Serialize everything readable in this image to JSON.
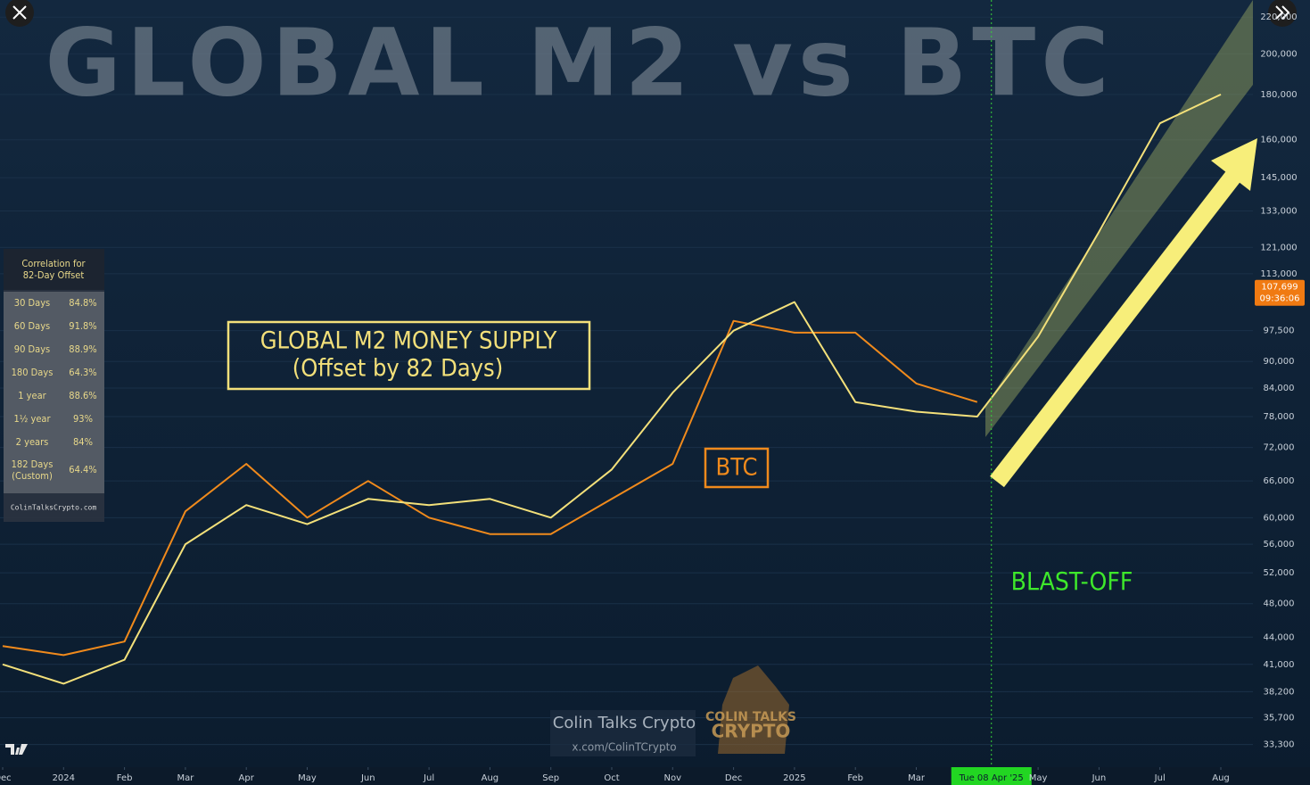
{
  "chart_data": {
    "type": "line",
    "title": "GLOBAL M2 vs BTC",
    "log_scale": true,
    "x": [
      "2023-12",
      "2024-01",
      "2024-02",
      "2024-03",
      "2024-04",
      "2024-05",
      "2024-06",
      "2024-07",
      "2024-08",
      "2024-09",
      "2024-10",
      "2024-11",
      "2024-12",
      "2025-01",
      "2025-02",
      "2025-03",
      "2025-04",
      "2025-05",
      "2025-06",
      "2025-07",
      "2025-08"
    ],
    "xticks": [
      {
        "value": "2023-12",
        "label": "Dec"
      },
      {
        "value": "2024-01",
        "label": "2024"
      },
      {
        "value": "2024-02",
        "label": "Feb"
      },
      {
        "value": "2024-03",
        "label": "Mar"
      },
      {
        "value": "2024-04",
        "label": "Apr"
      },
      {
        "value": "2024-05",
        "label": "May"
      },
      {
        "value": "2024-06",
        "label": "Jun"
      },
      {
        "value": "2024-07",
        "label": "Jul"
      },
      {
        "value": "2024-08",
        "label": "Aug"
      },
      {
        "value": "2024-09",
        "label": "Sep"
      },
      {
        "value": "2024-10",
        "label": "Oct"
      },
      {
        "value": "2024-11",
        "label": "Nov"
      },
      {
        "value": "2024-12",
        "label": "Dec"
      },
      {
        "value": "2025-01",
        "label": "2025"
      },
      {
        "value": "2025-02",
        "label": "Feb"
      },
      {
        "value": "2025-03",
        "label": "Mar"
      },
      {
        "value": "2025-05",
        "label": "May"
      },
      {
        "value": "2025-06",
        "label": "Jun"
      },
      {
        "value": "2025-07",
        "label": "Jul"
      },
      {
        "value": "2025-08",
        "label": "Aug"
      }
    ],
    "ylim": [
      31400,
      230000
    ],
    "yticks": [
      {
        "value": 220000,
        "label": "220,000"
      },
      {
        "value": 200000,
        "label": "200,000"
      },
      {
        "value": 180000,
        "label": "180,000"
      },
      {
        "value": 160000,
        "label": "160,000"
      },
      {
        "value": 145000,
        "label": "145,000"
      },
      {
        "value": 133000,
        "label": "133,000"
      },
      {
        "value": 121000,
        "label": "121,000"
      },
      {
        "value": 113000,
        "label": "113,000"
      },
      {
        "value": 97500,
        "label": "97,500"
      },
      {
        "value": 90000,
        "label": "90,000"
      },
      {
        "value": 84000,
        "label": "84,000"
      },
      {
        "value": 78000,
        "label": "78,000"
      },
      {
        "value": 72000,
        "label": "72,000"
      },
      {
        "value": 66000,
        "label": "66,000"
      },
      {
        "value": 60000,
        "label": "60,000"
      },
      {
        "value": 56000,
        "label": "56,000"
      },
      {
        "value": 52000,
        "label": "52,000"
      },
      {
        "value": 48000,
        "label": "48,000"
      },
      {
        "value": 44000,
        "label": "44,000"
      },
      {
        "value": 41000,
        "label": "41,000"
      },
      {
        "value": 38200,
        "label": "38,200"
      },
      {
        "value": 35700,
        "label": "35,700"
      },
      {
        "value": 33300,
        "label": "33,300"
      }
    ],
    "series": [
      {
        "name": "BTC",
        "color": "#f08a1c",
        "values": [
          43000,
          42000,
          43500,
          61000,
          69000,
          60000,
          66000,
          60000,
          57500,
          57500,
          63000,
          69000,
          100000,
          97000,
          97000,
          85000,
          81000,
          null,
          null,
          null,
          null
        ]
      },
      {
        "name": "GLOBAL M2 MONEY SUPPLY",
        "subtitle": "(Offset by 82 Days)",
        "color": "#f3e07a",
        "values": [
          41000,
          39000,
          41500,
          56000,
          62000,
          59000,
          63000,
          62000,
          63000,
          60000,
          68000,
          83000,
          97500,
          105000,
          81000,
          79000,
          78000,
          96000,
          126000,
          167000,
          180000
        ]
      }
    ],
    "price_tag": {
      "value": 107699,
      "label": "107,699",
      "time": "09:36:06"
    },
    "crosshair": {
      "x": "2025-04-08",
      "label": "Tue 08 Apr '25"
    },
    "annotation": "BLAST-OFF",
    "correlation_table": {
      "title": [
        "Correlation for",
        "82-Day Offset"
      ],
      "rows": [
        {
          "period": "30 Days",
          "corr": "84.8%"
        },
        {
          "period": "60 Days",
          "corr": "91.8%"
        },
        {
          "period": "90 Days",
          "corr": "88.9%"
        },
        {
          "period": "180 Days",
          "corr": "64.3%"
        },
        {
          "period": "1 year",
          "corr": "88.6%"
        },
        {
          "period": "1½ year",
          "corr": "93%"
        },
        {
          "period": "2 years",
          "corr": "84%"
        },
        {
          "period": "182 Days",
          "note": "(Custom)",
          "corr": "64.4%"
        }
      ],
      "footer": "ColinTalksCrypto.com"
    },
    "watermark": {
      "name": "Colin Talks Crypto",
      "handle": "x.com/ColinTCrypto",
      "logo": [
        "COLIN TALKS",
        "CRYPTO"
      ]
    }
  }
}
